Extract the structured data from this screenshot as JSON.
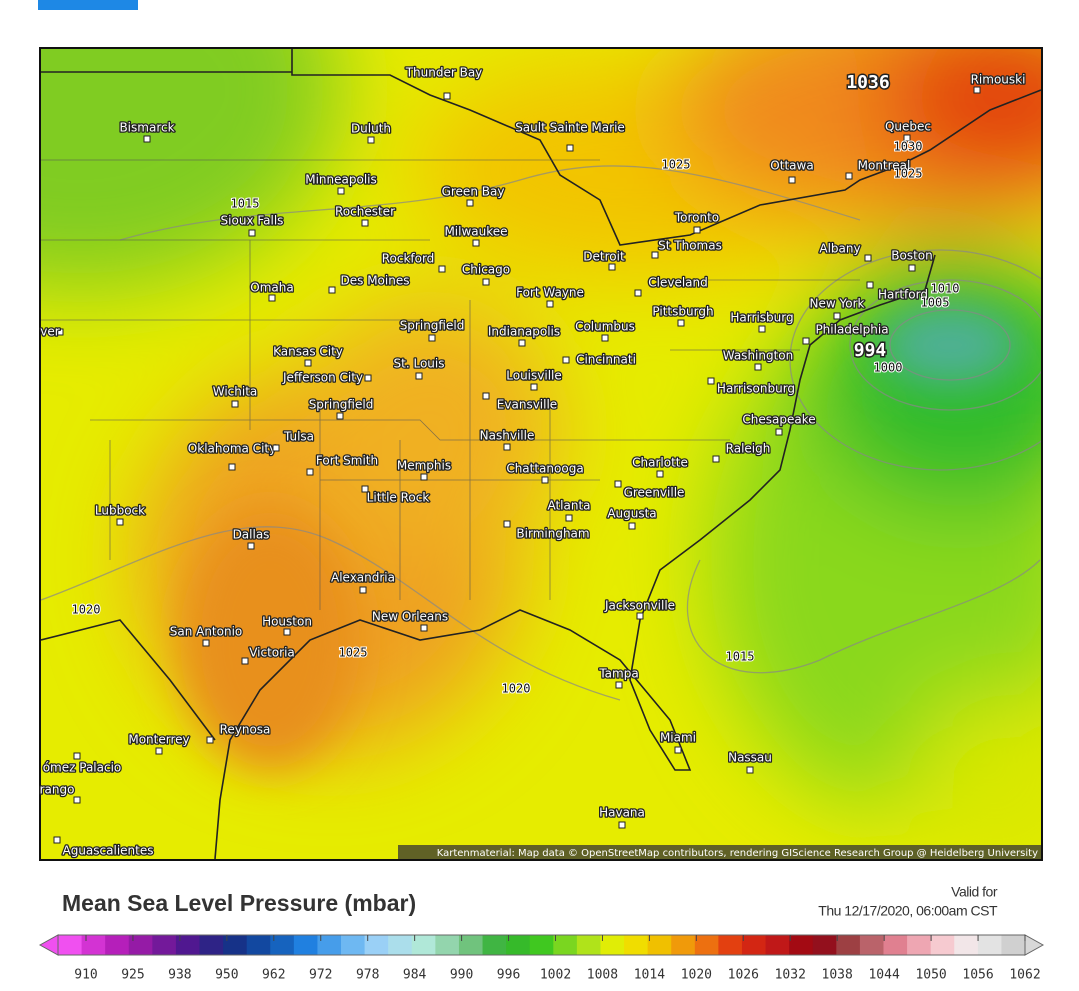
{
  "map": {
    "cities": [
      "Thunder Bay",
      "Bismarck",
      "Duluth",
      "Sault Sainte Marie",
      "Minneapolis",
      "Green Bay",
      "Rochester",
      "Sioux Falls",
      "Milwaukee",
      "Rockford",
      "Chicago",
      "Detroit",
      "Toronto",
      "St Thomas",
      "Ottawa",
      "Montreal",
      "Quebec",
      "Rimouski",
      "Albany",
      "Boston",
      "Hartford",
      "New York",
      "Philadelphia",
      "Omaha",
      "Des Moines",
      "Fort Wayne",
      "Cleveland",
      "Pittsburgh",
      "Harrisburg",
      "Springfield",
      "Indianapolis",
      "Columbus",
      "Kansas City",
      "St. Louis",
      "Cincinnati",
      "Washington",
      "Jefferson City",
      "Wichita",
      "Louisville",
      "Harrisonburg",
      "Evansville",
      "Springfield",
      "Chesapeake",
      "Oklahoma City",
      "Tulsa",
      "Nashville",
      "Raleigh",
      "Fort Smith",
      "Memphis",
      "Chattanooga",
      "Charlotte",
      "Greenville",
      "Little Rock",
      "Lubbock",
      "Atlanta",
      "Augusta",
      "Dallas",
      "Birmingham",
      "Alexandria",
      "Jacksonville",
      "New Orleans",
      "San Antonio",
      "Houston",
      "Victoria",
      "Tampa",
      "Reynosa",
      "Monterrey",
      "Miami",
      "Nassau",
      "ómez Palacio",
      "rango",
      "Havana",
      "Aguascalientes",
      "ver"
    ],
    "pressure_labels": [
      1036,
      1030,
      1025,
      1025,
      1015,
      1010,
      1005,
      994,
      1000,
      1015,
      1020,
      1025,
      1020
    ],
    "attribution": "Kartenmaterial: Map data © OpenStreetMap contributors, rendering GIScience Research Group @ Heidelberg University"
  },
  "legend": {
    "title": "Mean Sea Level Pressure (mbar)",
    "valid_label": "Valid for",
    "valid_time": "Thu 12/17/2020, 06:00am CST",
    "scale_labels": [
      910,
      925,
      938,
      950,
      962,
      972,
      978,
      984,
      990,
      996,
      1002,
      1008,
      1014,
      1020,
      1026,
      1032,
      1038,
      1044,
      1050,
      1056,
      1062
    ]
  }
}
